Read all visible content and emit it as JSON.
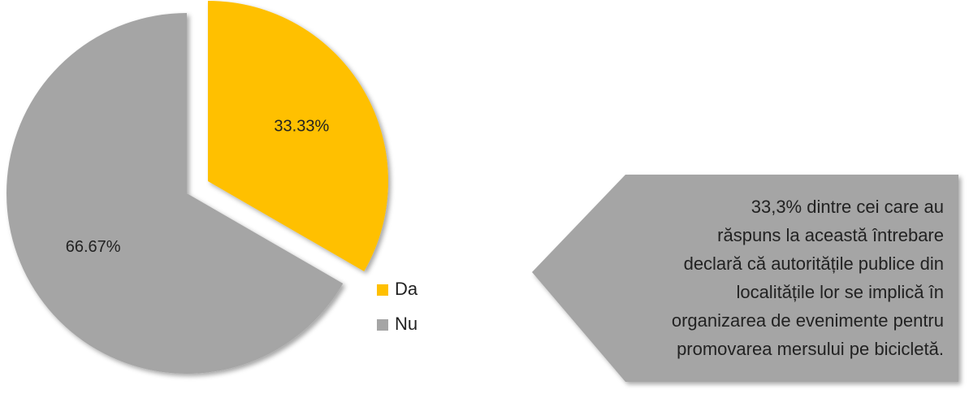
{
  "chart_data": {
    "type": "pie",
    "categories": [
      "Da",
      "Nu"
    ],
    "values": [
      33.33,
      66.67
    ],
    "value_labels": [
      "33.33%",
      "66.67%"
    ],
    "colors": [
      "#ffc000",
      "#a5a5a5"
    ],
    "legend": "right",
    "annotation": [
      "33,3% dintre cei care au",
      "răspuns la această întrebare",
      "declară că autoritățile publice din",
      "localitățile lor se implică în",
      "organizarea de evenimente pentru",
      "promovarea mersului pe bicicletă."
    ]
  }
}
